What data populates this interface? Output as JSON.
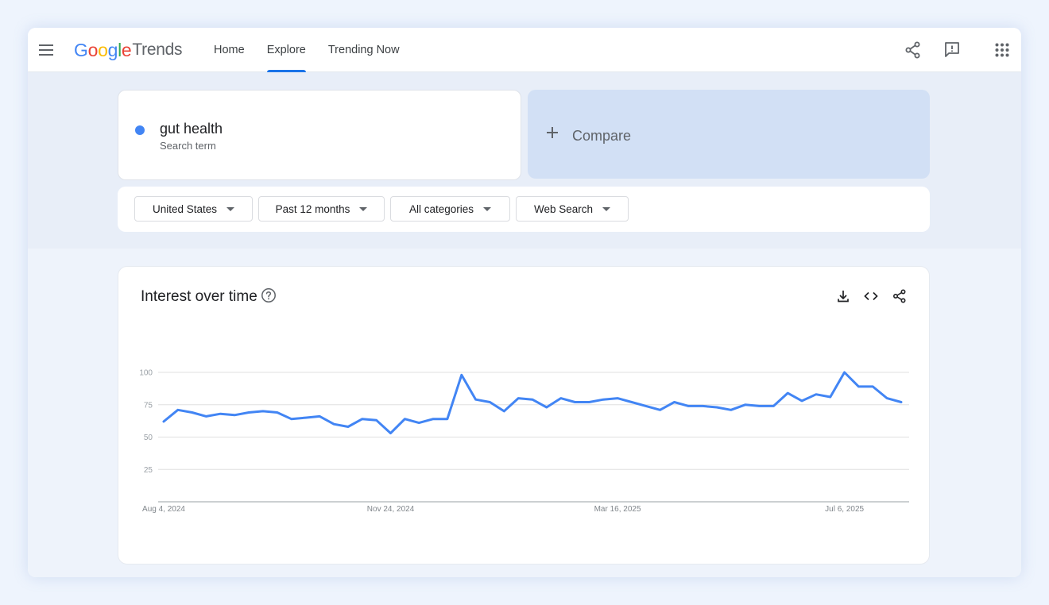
{
  "header": {
    "logo_google": "Google",
    "logo_product": "Trends",
    "nav": [
      {
        "label": "Home",
        "active": false
      },
      {
        "label": "Explore",
        "active": true
      },
      {
        "label": "Trending Now",
        "active": false
      }
    ],
    "icons": [
      "menu-icon",
      "share-icon",
      "feedback-icon",
      "apps-icon"
    ]
  },
  "search": {
    "term": "gut health",
    "term_type": "Search term",
    "term_color": "#4285f4",
    "compare_label": "Compare"
  },
  "filters": [
    {
      "label": "United States"
    },
    {
      "label": "Past 12 months"
    },
    {
      "label": "All categories"
    },
    {
      "label": "Web Search"
    }
  ],
  "chart_card": {
    "title": "Interest over time",
    "icons": [
      "help-icon",
      "download-icon",
      "embed-icon",
      "share-icon"
    ]
  },
  "chart_data": {
    "type": "line",
    "title": "Interest over time",
    "xlabel": "",
    "ylabel": "",
    "ylim": [
      0,
      100
    ],
    "yticks": [
      25,
      50,
      75,
      100
    ],
    "x_tick_labels": [
      {
        "label": "Aug 4, 2024",
        "index": 0
      },
      {
        "label": "Nov 24, 2024",
        "index": 16
      },
      {
        "label": "Mar 16, 2025",
        "index": 32
      },
      {
        "label": "Jul 6, 2025",
        "index": 48
      }
    ],
    "grid": true,
    "series": [
      {
        "color": "#4285f4",
        "values": [
          62,
          71,
          69,
          66,
          68,
          67,
          69,
          70,
          69,
          64,
          65,
          66,
          60,
          58,
          64,
          63,
          53,
          64,
          61,
          64,
          64,
          98,
          79,
          77,
          70,
          80,
          79,
          73,
          80,
          77,
          77,
          79,
          80,
          77,
          74,
          71,
          77,
          74,
          74,
          73,
          71,
          75,
          74,
          74,
          84,
          78,
          83,
          81,
          100,
          89,
          89,
          80,
          77
        ]
      }
    ]
  }
}
